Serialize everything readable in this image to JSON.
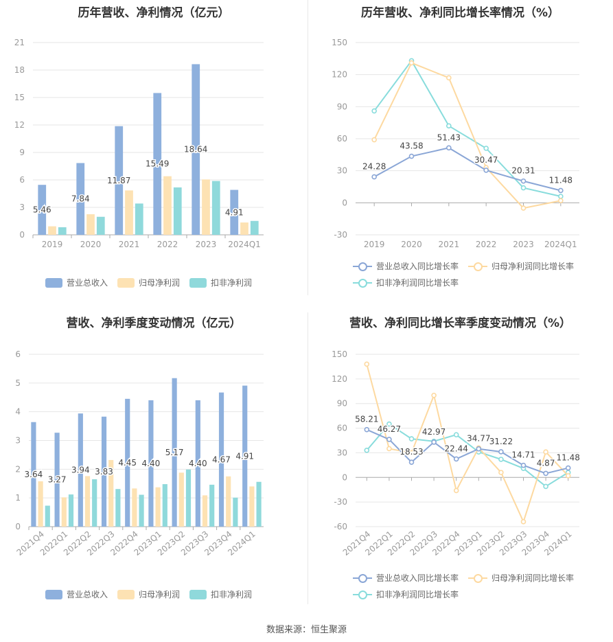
{
  "colors": {
    "revenue": "#8eb0dd",
    "parent": "#fde2b3",
    "deduct": "#8fd9db",
    "revenue_line": "#8aa6d6",
    "parent_line": "#fdd9a0",
    "deduct_line": "#88dcdc",
    "grid": "#e6e6e6",
    "axis": "#aaaaaa",
    "label": "#999999",
    "value": "#444444"
  },
  "footer": "数据来源：恒生聚源",
  "chart_data": [
    {
      "id": "annual_amount",
      "type": "bar",
      "title": "历年营收、净利情况（亿元）",
      "categories": [
        "2019",
        "2020",
        "2021",
        "2022",
        "2023",
        "2024Q1"
      ],
      "ylim": [
        0,
        21
      ],
      "yticks": [
        0,
        3,
        6,
        9,
        12,
        15,
        18,
        21
      ],
      "series": [
        {
          "name": "营业总收入",
          "values": [
            5.46,
            7.84,
            11.87,
            15.49,
            18.64,
            4.91
          ]
        },
        {
          "name": "归母净利润",
          "values": [
            0.93,
            2.25,
            4.85,
            6.4,
            6.05,
            1.35
          ]
        },
        {
          "name": "扣非净利润",
          "values": [
            0.83,
            1.97,
            3.42,
            5.18,
            5.88,
            1.52
          ]
        }
      ],
      "labels": [
        "5.46",
        "7.84",
        "11.87",
        "15.49",
        "18.64",
        "4.91"
      ],
      "label_series": 0,
      "rotate_x": false
    },
    {
      "id": "annual_growth",
      "type": "line",
      "title": "历年营收、净利同比增长率情况（%）",
      "categories": [
        "2019",
        "2020",
        "2021",
        "2022",
        "2023",
        "2024Q1"
      ],
      "ylim": [
        -30,
        150
      ],
      "yticks": [
        -30,
        0,
        30,
        60,
        90,
        120,
        150
      ],
      "series": [
        {
          "name": "营业总收入同比增长率",
          "values": [
            24.28,
            43.58,
            51.43,
            30.47,
            20.31,
            11.48
          ]
        },
        {
          "name": "归母净利润同比增长率",
          "values": [
            59,
            131,
            117,
            33,
            -5,
            2
          ]
        },
        {
          "name": "扣非净利润同比增长率",
          "values": [
            86,
            133,
            72,
            51,
            14,
            6
          ]
        }
      ],
      "labels": [
        "24.28",
        "43.58",
        "51.43",
        "30.47",
        "20.31",
        "11.48"
      ],
      "label_series": 0,
      "rotate_x": false
    },
    {
      "id": "quarterly_amount",
      "type": "bar",
      "title": "营收、净利季度变动情况（亿元）",
      "categories": [
        "2021Q4",
        "2022Q1",
        "2022Q2",
        "2022Q3",
        "2022Q4",
        "2023Q1",
        "2023Q2",
        "2023Q3",
        "2023Q4",
        "2024Q1"
      ],
      "ylim": [
        0,
        6
      ],
      "yticks": [
        0,
        1,
        2,
        3,
        4,
        5,
        6
      ],
      "series": [
        {
          "name": "营业总收入",
          "values": [
            3.64,
            3.27,
            3.94,
            3.83,
            4.45,
            4.4,
            5.17,
            4.4,
            4.67,
            4.91
          ]
        },
        {
          "name": "归母净利润",
          "values": [
            1.58,
            1.02,
            1.76,
            2.32,
            1.33,
            1.37,
            1.88,
            1.09,
            1.75,
            1.4
          ]
        },
        {
          "name": "扣非净利润",
          "values": [
            0.73,
            1.12,
            1.65,
            1.31,
            1.11,
            1.48,
            1.99,
            1.46,
            1.01,
            1.56
          ]
        }
      ],
      "labels": [
        "3.64",
        "3.27",
        "3.94",
        "3.83",
        "4.45",
        "4.40",
        "5.17",
        "4.40",
        "4.67",
        "4.91"
      ],
      "label_series": 0,
      "rotate_x": true
    },
    {
      "id": "quarterly_growth",
      "type": "line",
      "title": "营收、净利同比增长率季度变动情况（%）",
      "categories": [
        "2021Q4",
        "2022Q1",
        "2022Q2",
        "2022Q3",
        "2022Q4",
        "2023Q1",
        "2023Q2",
        "2023Q3",
        "2023Q4",
        "2024Q1"
      ],
      "ylim": [
        -60,
        150
      ],
      "yticks": [
        -60,
        -30,
        0,
        30,
        60,
        90,
        120,
        150
      ],
      "series": [
        {
          "name": "营业总收入同比增长率",
          "values": [
            58.21,
            46.27,
            18.53,
            42.97,
            22.44,
            34.77,
            31.22,
            14.71,
            4.87,
            11.48
          ]
        },
        {
          "name": "归母净利润同比增长率",
          "values": [
            138,
            35,
            30,
            100,
            -16,
            36,
            6,
            -54,
            31,
            2
          ]
        },
        {
          "name": "扣非净利润同比增长率",
          "values": [
            33,
            65,
            47,
            44,
            52,
            31,
            22,
            11,
            -11,
            6
          ]
        }
      ],
      "labels": [
        "58.21",
        "46.27",
        "18.53",
        "42.97",
        "22.44",
        "34.77",
        "31.22",
        "14.71",
        "4.87",
        "11.48"
      ],
      "label_series": 0,
      "rotate_x": true
    }
  ]
}
